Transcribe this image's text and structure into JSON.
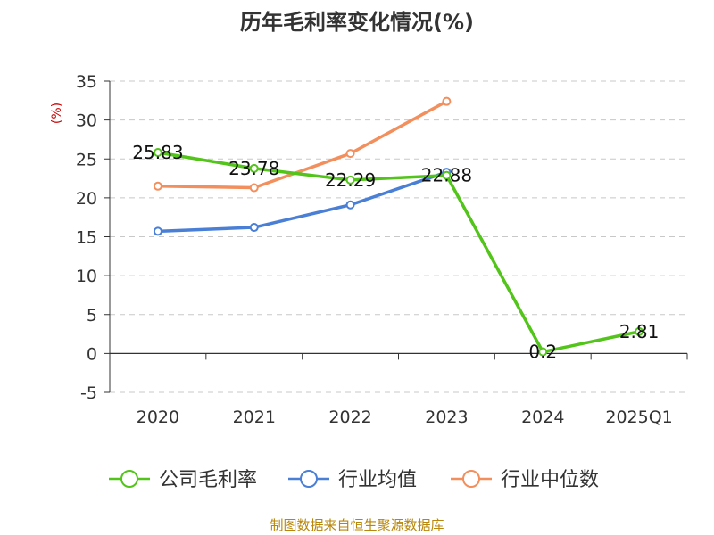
{
  "chart_data": {
    "type": "line",
    "title": "历年毛利率变化情况(%)",
    "ylabel": "(%)",
    "xlabel": "",
    "categories": [
      "2020",
      "2021",
      "2022",
      "2023",
      "2024",
      "2025Q1"
    ],
    "ylim": [
      -5,
      35
    ],
    "yticks": [
      "35",
      "30",
      "25",
      "20",
      "15",
      "10",
      "5",
      "0",
      "-5"
    ],
    "grid": "horizontal-dashed",
    "legend_position": "bottom",
    "series": [
      {
        "name": "公司毛利率",
        "color": "#52c41a",
        "values": [
          25.83,
          23.78,
          22.29,
          22.88,
          0.2,
          2.81
        ],
        "labels": [
          "25.83",
          "23.78",
          "22.29",
          "22.88",
          "0.2",
          "2.81"
        ]
      },
      {
        "name": "行业均值",
        "color": "#4a7fd6",
        "values": [
          15.7,
          16.2,
          19.1,
          23.3,
          null,
          null
        ]
      },
      {
        "name": "行业中位数",
        "color": "#f28f5c",
        "values": [
          21.5,
          21.3,
          25.7,
          32.4,
          null,
          null
        ]
      }
    ]
  },
  "footer": "制图数据来自恒生聚源数据库"
}
